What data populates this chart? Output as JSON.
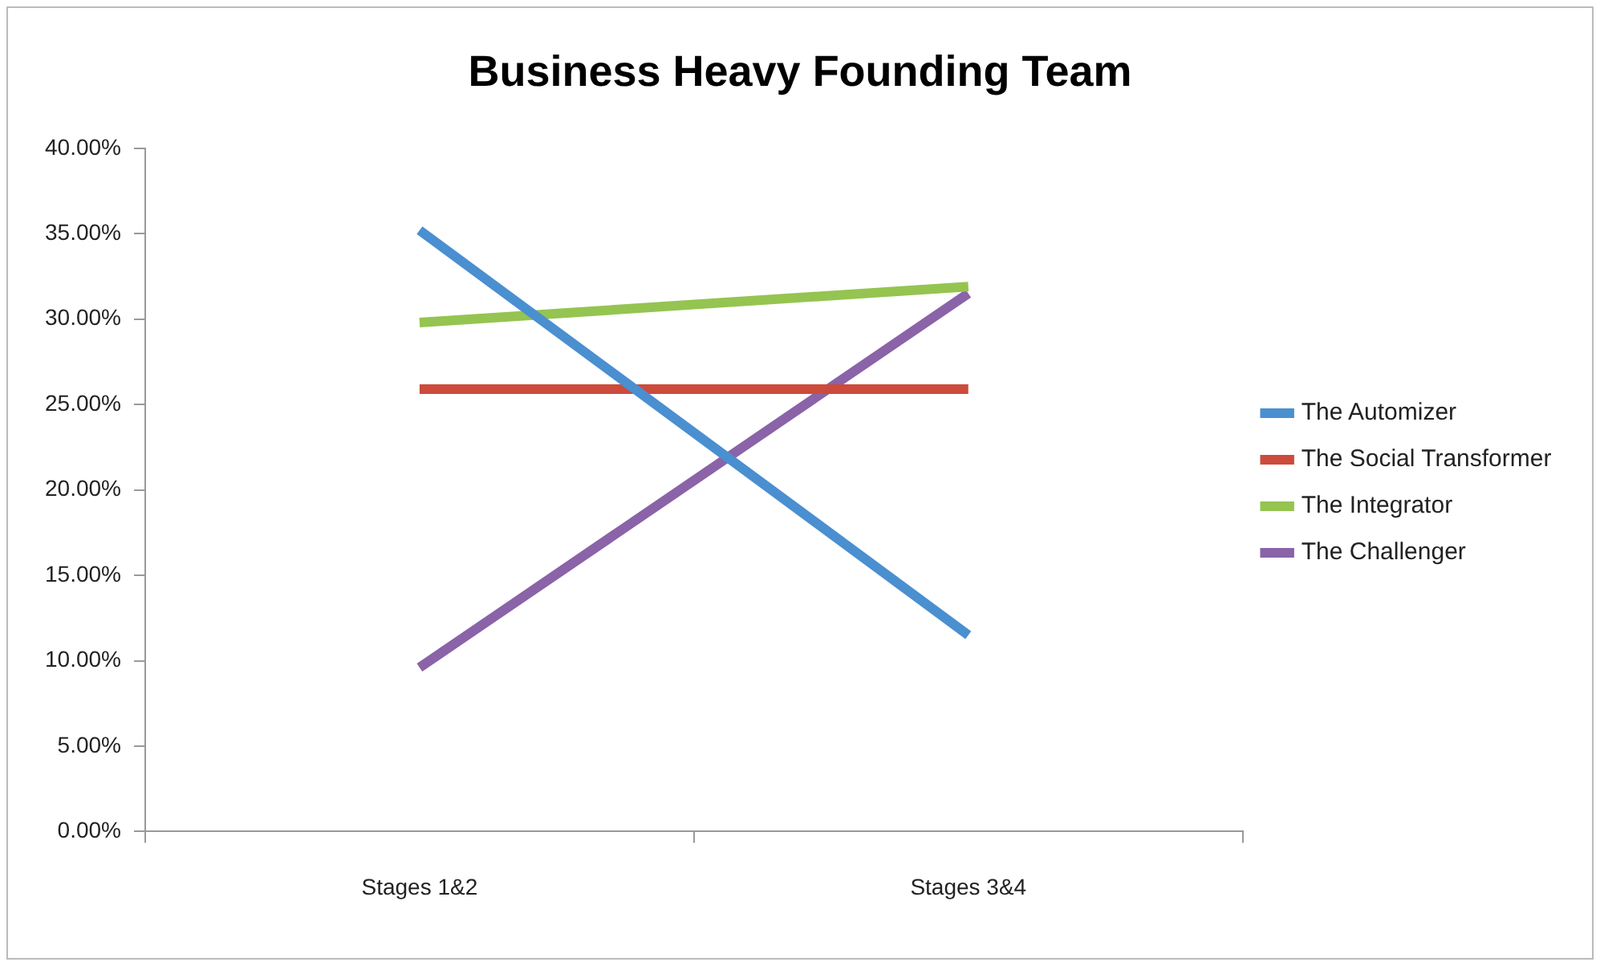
{
  "chart_data": {
    "type": "line",
    "title": "Business Heavy Founding Team",
    "categories": [
      "Stages 1&2",
      "Stages 3&4"
    ],
    "series": [
      {
        "name": "The Automizer",
        "color": "#4a8fd0",
        "values": [
          35.2,
          11.5
        ]
      },
      {
        "name": "The Social Transformer",
        "color": "#cc4b3c",
        "values": [
          25.9,
          25.9
        ]
      },
      {
        "name": "The Integrator",
        "color": "#95c451",
        "values": [
          29.8,
          31.9
        ]
      },
      {
        "name": "The Challenger",
        "color": "#8a63a8",
        "values": [
          9.6,
          31.5
        ]
      }
    ],
    "ylim": [
      0,
      40
    ],
    "yticks": [
      {
        "value": 0,
        "label": "0.00%"
      },
      {
        "value": 5,
        "label": "5.00%"
      },
      {
        "value": 10,
        "label": "10.00%"
      },
      {
        "value": 15,
        "label": "15.00%"
      },
      {
        "value": 20,
        "label": "20.00%"
      },
      {
        "value": 25,
        "label": "25.00%"
      },
      {
        "value": 30,
        "label": "30.00%"
      },
      {
        "value": 35,
        "label": "35.00%"
      },
      {
        "value": 40,
        "label": "40.00%"
      }
    ],
    "grid": false,
    "legend": "right",
    "marker": "none",
    "line_style": "solid"
  }
}
